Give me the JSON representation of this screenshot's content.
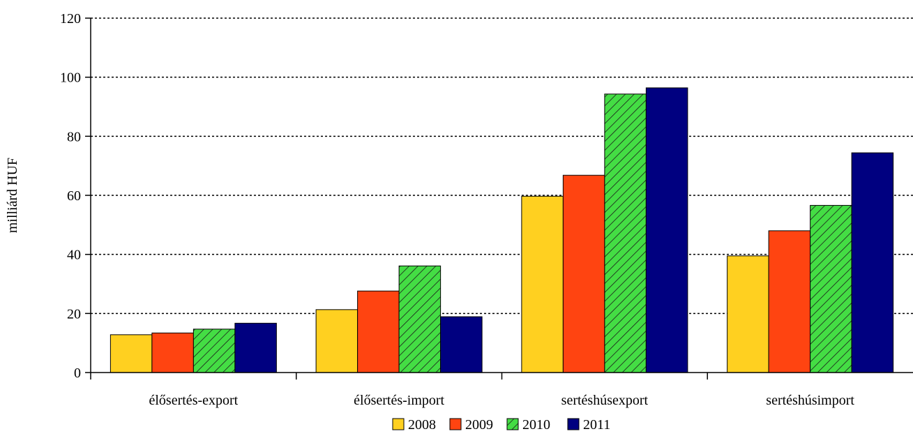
{
  "chart_data": {
    "type": "bar",
    "title": "",
    "xlabel": "",
    "ylabel": "milliárd HUF",
    "ylim": [
      0,
      120
    ],
    "yticks": [
      0,
      20,
      40,
      60,
      80,
      100,
      120
    ],
    "grid": true,
    "legend_position": "bottom",
    "categories": [
      "élősertés-export",
      "élősertés-import",
      "sertéshúsexport",
      "sertéshúsimport"
    ],
    "series": [
      {
        "name": "2008",
        "color": "#FFD020",
        "pattern": "solid",
        "values": [
          12.8,
          21.3,
          59.7,
          39.5
        ]
      },
      {
        "name": "2009",
        "color": "#FF4411",
        "pattern": "solid",
        "values": [
          13.4,
          27.6,
          66.8,
          48.0
        ]
      },
      {
        "name": "2010",
        "color": "#44DD44",
        "pattern": "hatch",
        "values": [
          14.7,
          36.1,
          94.3,
          56.6
        ]
      },
      {
        "name": "2011",
        "color": "#000080",
        "pattern": "solid",
        "values": [
          16.7,
          18.9,
          96.4,
          74.4
        ]
      }
    ]
  }
}
